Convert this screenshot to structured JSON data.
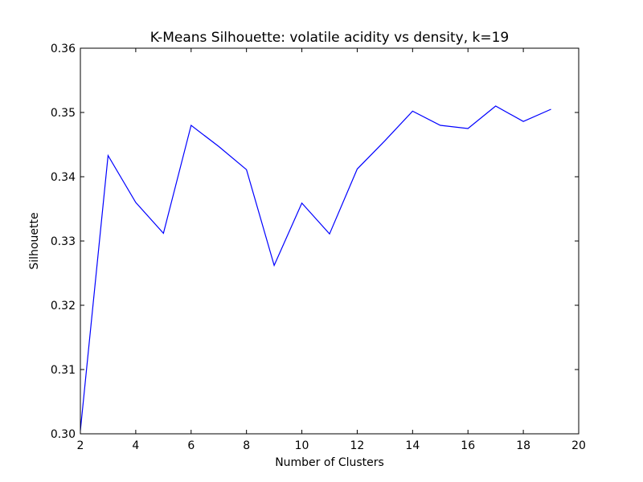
{
  "chart_data": {
    "type": "line",
    "title": "K-Means Silhouette: volatile acidity vs density, k=19",
    "xlabel": "Number of Clusters",
    "ylabel": "Silhouette",
    "xlim": [
      2,
      20
    ],
    "ylim": [
      0.3,
      0.36
    ],
    "xticks": [
      "2",
      "4",
      "6",
      "8",
      "10",
      "12",
      "14",
      "16",
      "18",
      "20"
    ],
    "yticks": [
      "0.30",
      "0.31",
      "0.32",
      "0.33",
      "0.34",
      "0.35",
      "0.36"
    ],
    "grid": false,
    "colors": {
      "line": "#0000ff"
    },
    "series": [
      {
        "x": [
          2,
          3,
          4,
          5,
          6,
          7,
          8,
          9,
          10,
          11,
          12,
          13,
          14,
          15,
          16,
          17,
          18,
          19
        ],
        "values": [
          0.3005,
          0.3433,
          0.336,
          0.3312,
          0.348,
          0.3447,
          0.3411,
          0.3262,
          0.3359,
          0.3311,
          0.3412,
          0.3456,
          0.3502,
          0.348,
          0.3475,
          0.351,
          0.3486,
          0.3505
        ]
      }
    ]
  }
}
